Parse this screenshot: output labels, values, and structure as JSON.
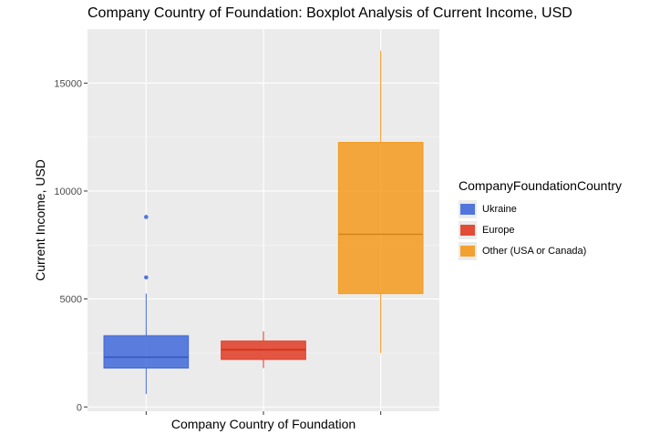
{
  "chart_data": {
    "type": "boxplot",
    "title": "Company Country of Foundation: Boxplot Analysis of Current Income, USD",
    "xlabel": "Company Country of Foundation",
    "ylabel": "Current Income, USD",
    "ylim": [
      -200,
      17500
    ],
    "yticks": [
      0,
      5000,
      10000,
      15000
    ],
    "ytick_labels": [
      "0",
      "5000",
      "10000",
      "15000"
    ],
    "grid": true,
    "legend": {
      "title": "CompanyFoundationCountry",
      "position": "right"
    },
    "series": [
      {
        "name": "Ukraine",
        "color": "#4169d9",
        "min": 600,
        "q1": 1800,
        "median": 2300,
        "q3": 3300,
        "max": 5250,
        "outliers": [
          6000,
          8800
        ]
      },
      {
        "name": "Europe",
        "color": "#e03b24",
        "min": 1800,
        "q1": 2200,
        "median": 2650,
        "q3": 3050,
        "max": 3500,
        "outliers": []
      },
      {
        "name": "Other (USA or Canada)",
        "color": "#f39a1d",
        "min": 2500,
        "q1": 5250,
        "median": 8000,
        "q3": 12250,
        "max": 16500,
        "outliers": []
      }
    ]
  }
}
